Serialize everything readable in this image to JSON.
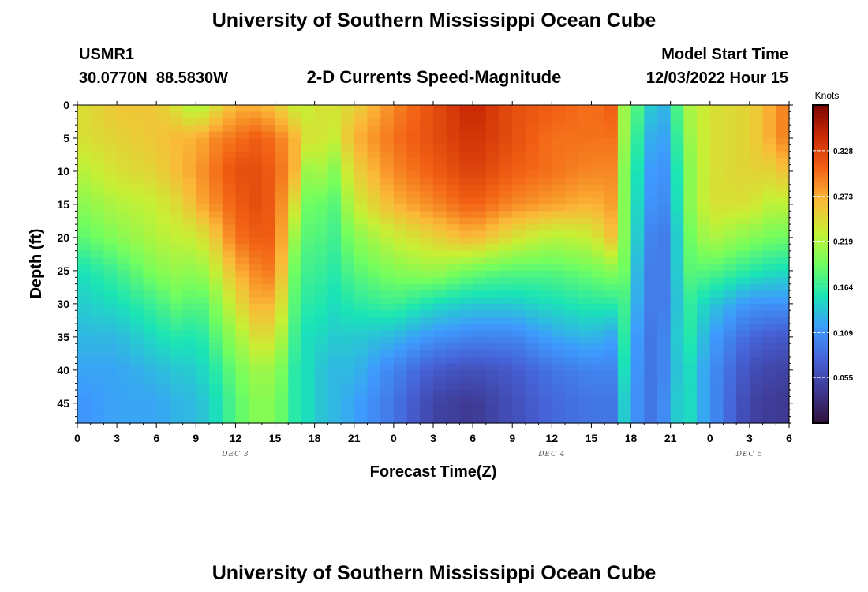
{
  "page": {
    "title": "University of Southern Mississippi Ocean Cube",
    "bottom_title": "University of Southern Mississippi Ocean Cube"
  },
  "station": {
    "id": "USMR1",
    "coords": "30.0770N  88.5830W"
  },
  "model": {
    "start_label": "Model Start Time",
    "start_value": "12/03/2022 Hour 15"
  },
  "chart_data": {
    "type": "heatmap",
    "title": "2-D Currents Speed-Magnitude",
    "xlabel": "Forecast Time(Z)",
    "ylabel": "Depth (ft)",
    "x_range_hours": [
      0,
      54
    ],
    "x_ticks": [
      "0",
      "3",
      "6",
      "9",
      "12",
      "15",
      "18",
      "21",
      "0",
      "3",
      "6",
      "9",
      "12",
      "15",
      "18",
      "21",
      "0",
      "3",
      "6"
    ],
    "x_tick_hours": [
      0,
      3,
      6,
      9,
      12,
      15,
      18,
      21,
      24,
      27,
      30,
      33,
      36,
      39,
      42,
      45,
      48,
      51,
      54
    ],
    "day_labels": [
      {
        "text": "DEC 3",
        "hour": 12
      },
      {
        "text": "DEC 4",
        "hour": 36
      },
      {
        "text": "DEC 5",
        "hour": 51
      }
    ],
    "y_range_ft": [
      0,
      48
    ],
    "y_ticks": [
      "0",
      "5",
      "10",
      "15",
      "20",
      "25",
      "30",
      "35",
      "40",
      "45"
    ],
    "y_tick_values": [
      0,
      5,
      10,
      15,
      20,
      25,
      30,
      35,
      40,
      45
    ],
    "colorbar": {
      "unit": "Knots",
      "min": 0.0,
      "max": 0.383,
      "ticks": [
        "0.328",
        "0.273",
        "0.219",
        "0.164",
        "0.109",
        "0.055"
      ],
      "tick_values": [
        0.328,
        0.273,
        0.219,
        0.164,
        0.109,
        0.055
      ]
    },
    "depth_grid_ft": [
      0,
      5,
      10,
      15,
      20,
      25,
      30,
      35,
      40,
      45,
      48
    ],
    "time_hours": [
      0,
      3,
      6,
      8,
      9,
      10.5,
      12,
      13.5,
      15,
      16.5,
      17.5,
      18,
      19.5,
      21,
      24,
      27,
      30,
      33,
      36,
      39,
      40.5,
      41.5,
      43,
      44,
      45,
      46,
      48,
      51,
      53,
      54
    ],
    "speed_knots": [
      [
        0.24,
        0.24,
        0.22,
        0.2,
        0.18,
        0.15,
        0.14,
        0.13,
        0.12,
        0.11,
        0.11
      ],
      [
        0.26,
        0.25,
        0.24,
        0.22,
        0.2,
        0.17,
        0.15,
        0.13,
        0.12,
        0.12,
        0.12
      ],
      [
        0.26,
        0.26,
        0.25,
        0.23,
        0.22,
        0.2,
        0.17,
        0.15,
        0.13,
        0.12,
        0.12
      ],
      [
        0.23,
        0.27,
        0.27,
        0.25,
        0.23,
        0.21,
        0.19,
        0.16,
        0.14,
        0.13,
        0.13
      ],
      [
        0.21,
        0.27,
        0.28,
        0.27,
        0.23,
        0.2,
        0.17,
        0.15,
        0.14,
        0.13,
        0.13
      ],
      [
        0.24,
        0.29,
        0.3,
        0.29,
        0.26,
        0.23,
        0.2,
        0.18,
        0.16,
        0.15,
        0.15
      ],
      [
        0.27,
        0.3,
        0.32,
        0.31,
        0.3,
        0.27,
        0.24,
        0.21,
        0.19,
        0.18,
        0.18
      ],
      [
        0.27,
        0.31,
        0.32,
        0.32,
        0.31,
        0.29,
        0.27,
        0.24,
        0.21,
        0.2,
        0.2
      ],
      [
        0.26,
        0.3,
        0.31,
        0.31,
        0.31,
        0.3,
        0.27,
        0.24,
        0.21,
        0.2,
        0.2
      ],
      [
        0.23,
        0.27,
        0.27,
        0.24,
        0.21,
        0.19,
        0.18,
        0.17,
        0.16,
        0.16,
        0.16
      ],
      [
        0.23,
        0.24,
        0.21,
        0.19,
        0.18,
        0.17,
        0.16,
        0.15,
        0.15,
        0.15,
        0.15
      ],
      [
        0.24,
        0.24,
        0.22,
        0.19,
        0.18,
        0.17,
        0.16,
        0.15,
        0.14,
        0.14,
        0.14
      ],
      [
        0.24,
        0.23,
        0.2,
        0.18,
        0.17,
        0.16,
        0.15,
        0.14,
        0.13,
        0.13,
        0.13
      ],
      [
        0.25,
        0.27,
        0.25,
        0.23,
        0.2,
        0.18,
        0.16,
        0.14,
        0.13,
        0.12,
        0.12
      ],
      [
        0.29,
        0.3,
        0.29,
        0.27,
        0.23,
        0.2,
        0.17,
        0.13,
        0.1,
        0.09,
        0.09
      ],
      [
        0.32,
        0.32,
        0.31,
        0.29,
        0.25,
        0.21,
        0.15,
        0.11,
        0.07,
        0.05,
        0.05
      ],
      [
        0.35,
        0.34,
        0.33,
        0.31,
        0.27,
        0.19,
        0.14,
        0.1,
        0.06,
        0.04,
        0.04
      ],
      [
        0.32,
        0.32,
        0.31,
        0.29,
        0.24,
        0.18,
        0.14,
        0.1,
        0.07,
        0.06,
        0.06
      ],
      [
        0.31,
        0.3,
        0.3,
        0.28,
        0.22,
        0.18,
        0.15,
        0.12,
        0.09,
        0.08,
        0.08
      ],
      [
        0.3,
        0.3,
        0.29,
        0.27,
        0.23,
        0.19,
        0.16,
        0.13,
        0.1,
        0.09,
        0.09
      ],
      [
        0.31,
        0.3,
        0.29,
        0.28,
        0.26,
        0.2,
        0.16,
        0.12,
        0.1,
        0.09,
        0.09
      ],
      [
        0.21,
        0.21,
        0.2,
        0.2,
        0.2,
        0.19,
        0.17,
        0.16,
        0.15,
        0.14,
        0.14
      ],
      [
        0.16,
        0.14,
        0.13,
        0.12,
        0.11,
        0.1,
        0.1,
        0.09,
        0.09,
        0.09,
        0.09
      ],
      [
        0.12,
        0.11,
        0.1,
        0.1,
        0.09,
        0.09,
        0.09,
        0.09,
        0.09,
        0.09,
        0.09
      ],
      [
        0.14,
        0.13,
        0.12,
        0.11,
        0.1,
        0.1,
        0.1,
        0.11,
        0.11,
        0.12,
        0.12
      ],
      [
        0.21,
        0.2,
        0.19,
        0.19,
        0.18,
        0.18,
        0.17,
        0.17,
        0.16,
        0.16,
        0.16
      ],
      [
        0.24,
        0.24,
        0.24,
        0.24,
        0.22,
        0.18,
        0.14,
        0.12,
        0.11,
        0.11,
        0.11
      ],
      [
        0.25,
        0.25,
        0.25,
        0.24,
        0.2,
        0.16,
        0.11,
        0.08,
        0.06,
        0.05,
        0.05
      ],
      [
        0.28,
        0.28,
        0.25,
        0.22,
        0.19,
        0.15,
        0.11,
        0.07,
        0.05,
        0.04,
        0.04
      ],
      [
        0.3,
        0.3,
        0.27,
        0.23,
        0.19,
        0.15,
        0.11,
        0.07,
        0.05,
        0.04,
        0.04
      ]
    ]
  },
  "colors": {
    "colormap": [
      "#30123b",
      "#3e378f",
      "#4662d7",
      "#3e9bfe",
      "#1ae4b6",
      "#72fe5e",
      "#c8ef34",
      "#fbb938",
      "#f36315",
      "#ca2a04",
      "#7a0403"
    ]
  }
}
